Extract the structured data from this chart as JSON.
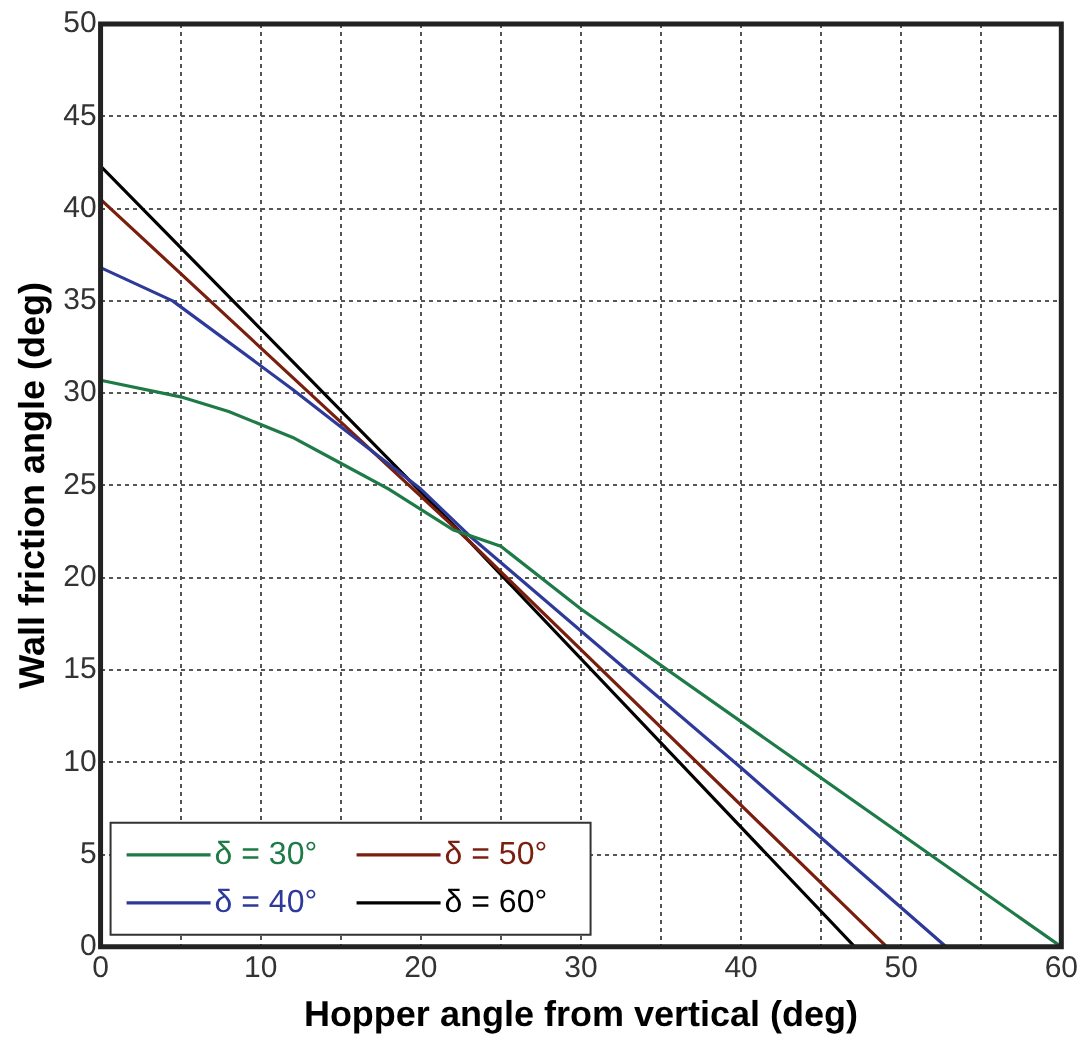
{
  "chart_data": {
    "type": "line",
    "xlabel": "Hopper angle from vertical (deg)",
    "ylabel": "Wall friction angle (deg)",
    "xlim": [
      0,
      60
    ],
    "ylim": [
      0,
      50
    ],
    "xticks": [
      0,
      {
        "value": 5,
        "label": null
      },
      10,
      {
        "value": 15,
        "label": null
      },
      20,
      {
        "value": 25,
        "label": null
      },
      30,
      {
        "value": 35,
        "label": null
      },
      40,
      {
        "value": 45,
        "label": null
      },
      50,
      {
        "value": 55,
        "label": null
      },
      60
    ],
    "yticks": [
      0,
      5,
      10,
      15,
      20,
      25,
      30,
      35,
      40,
      45,
      50
    ],
    "grid": true,
    "legend": "bottom left",
    "marker": "none",
    "line_style": "solid",
    "series": [
      {
        "name": "δ = 30°",
        "color": "#1e7a46",
        "x": [
          0,
          5,
          8,
          12,
          15,
          18,
          22,
          25,
          30,
          40,
          50,
          60
        ],
        "values": [
          30.7,
          29.8,
          29,
          27.6,
          26.2,
          24.8,
          22.6,
          21.7,
          18.3,
          12.2,
          6.1,
          0
        ]
      },
      {
        "name": "δ = 40°",
        "color": "#2e3a9a",
        "x": [
          0,
          4.5,
          12,
          20,
          23,
          40,
          52.8
        ],
        "values": [
          36.8,
          35,
          30.2,
          24.8,
          22.3,
          9.7,
          0
        ]
      },
      {
        "name": "δ = 50°",
        "color": "#7a1e0e",
        "x": [
          0,
          23,
          49.1
        ],
        "values": [
          40.5,
          22,
          0
        ]
      },
      {
        "name": "δ = 60°",
        "color": "#000000",
        "x": [
          0,
          23,
          47.1
        ],
        "values": [
          42.3,
          22,
          0
        ]
      }
    ]
  }
}
